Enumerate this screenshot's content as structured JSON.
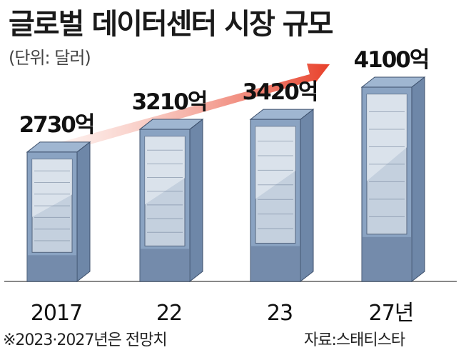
{
  "title": "글로벌 데이터센터 시장 규모",
  "unit_label": "(단위: 달러)",
  "footnote": "※2023·2027년은 전망치",
  "source": "자료:스태티스타",
  "colors": {
    "rack_front": "#8aa3c2",
    "rack_side": "#6e87a8",
    "rack_top": "#9fb6d1",
    "rack_dark": "#586f90",
    "arrow_start": "#fbe3dc",
    "arrow_end": "#e8402a",
    "baseline": "#888888"
  },
  "chart_data": {
    "type": "bar",
    "title": "글로벌 데이터센터 시장 규모",
    "ylabel": "(단위: 달러)",
    "categories": [
      "2017",
      "22",
      "23",
      "27년"
    ],
    "values": [
      2730,
      3210,
      3420,
      4100
    ],
    "value_labels": [
      "2730억",
      "3210억",
      "3420억",
      "4100억"
    ],
    "ylim": [
      0,
      4100
    ],
    "grid": false
  }
}
